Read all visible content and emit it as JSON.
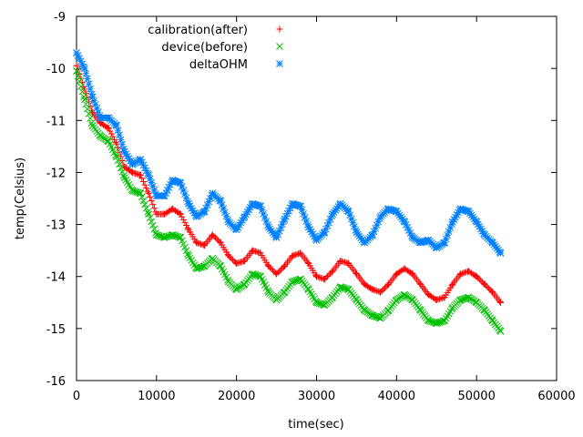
{
  "chart_data": {
    "type": "scatter",
    "title": "",
    "xlabel": "time(sec)",
    "ylabel": "temp(Celsius)",
    "xlim": [
      0,
      60000
    ],
    "ylim": [
      -16,
      -9
    ],
    "xticks": [
      0,
      10000,
      20000,
      30000,
      40000,
      50000,
      60000
    ],
    "yticks": [
      -16,
      -15,
      -14,
      -13,
      -12,
      -11,
      -10,
      -9
    ],
    "grid": false,
    "legend_position": "top-center",
    "series": [
      {
        "name": "calibration(after)",
        "marker": "plus",
        "color": "#ff0000",
        "points": [
          [
            0,
            -9.95
          ],
          [
            1000,
            -10.4
          ],
          [
            2000,
            -10.85
          ],
          [
            3000,
            -11.05
          ],
          [
            4000,
            -11.15
          ],
          [
            5000,
            -11.45
          ],
          [
            6000,
            -11.9
          ],
          [
            7000,
            -12.0
          ],
          [
            8000,
            -12.05
          ],
          [
            9000,
            -12.4
          ],
          [
            10000,
            -12.8
          ],
          [
            11000,
            -12.8
          ],
          [
            12000,
            -12.7
          ],
          [
            13000,
            -12.8
          ],
          [
            14000,
            -13.1
          ],
          [
            15000,
            -13.35
          ],
          [
            16000,
            -13.4
          ],
          [
            17000,
            -13.2
          ],
          [
            18000,
            -13.35
          ],
          [
            19000,
            -13.6
          ],
          [
            20000,
            -13.75
          ],
          [
            21000,
            -13.7
          ],
          [
            22000,
            -13.5
          ],
          [
            23000,
            -13.55
          ],
          [
            24000,
            -13.8
          ],
          [
            25000,
            -13.95
          ],
          [
            26000,
            -13.8
          ],
          [
            27000,
            -13.6
          ],
          [
            28000,
            -13.55
          ],
          [
            29000,
            -13.75
          ],
          [
            30000,
            -14.0
          ],
          [
            31000,
            -14.05
          ],
          [
            32000,
            -13.9
          ],
          [
            33000,
            -13.7
          ],
          [
            34000,
            -13.75
          ],
          [
            35000,
            -13.95
          ],
          [
            36000,
            -14.15
          ],
          [
            37000,
            -14.25
          ],
          [
            38000,
            -14.3
          ],
          [
            39000,
            -14.15
          ],
          [
            40000,
            -13.95
          ],
          [
            41000,
            -13.85
          ],
          [
            42000,
            -13.95
          ],
          [
            43000,
            -14.15
          ],
          [
            44000,
            -14.35
          ],
          [
            45000,
            -14.45
          ],
          [
            46000,
            -14.4
          ],
          [
            47000,
            -14.15
          ],
          [
            48000,
            -13.95
          ],
          [
            49000,
            -13.9
          ],
          [
            50000,
            -14.0
          ],
          [
            51000,
            -14.15
          ],
          [
            52000,
            -14.3
          ],
          [
            53000,
            -14.5
          ]
        ]
      },
      {
        "name": "device(before)",
        "marker": "cross",
        "color": "#00c000",
        "points": [
          [
            0,
            -10.05
          ],
          [
            1000,
            -10.6
          ],
          [
            2000,
            -11.1
          ],
          [
            3000,
            -11.3
          ],
          [
            4000,
            -11.4
          ],
          [
            5000,
            -11.7
          ],
          [
            6000,
            -12.1
          ],
          [
            7000,
            -12.35
          ],
          [
            8000,
            -12.4
          ],
          [
            9000,
            -12.8
          ],
          [
            10000,
            -13.2
          ],
          [
            11000,
            -13.25
          ],
          [
            12000,
            -13.2
          ],
          [
            13000,
            -13.25
          ],
          [
            14000,
            -13.6
          ],
          [
            15000,
            -13.85
          ],
          [
            16000,
            -13.8
          ],
          [
            17000,
            -13.65
          ],
          [
            18000,
            -13.8
          ],
          [
            19000,
            -14.1
          ],
          [
            20000,
            -14.25
          ],
          [
            21000,
            -14.15
          ],
          [
            22000,
            -13.95
          ],
          [
            23000,
            -14.0
          ],
          [
            24000,
            -14.3
          ],
          [
            25000,
            -14.45
          ],
          [
            26000,
            -14.3
          ],
          [
            27000,
            -14.1
          ],
          [
            28000,
            -14.05
          ],
          [
            29000,
            -14.25
          ],
          [
            30000,
            -14.5
          ],
          [
            31000,
            -14.55
          ],
          [
            32000,
            -14.4
          ],
          [
            33000,
            -14.2
          ],
          [
            34000,
            -14.25
          ],
          [
            35000,
            -14.45
          ],
          [
            36000,
            -14.65
          ],
          [
            37000,
            -14.75
          ],
          [
            38000,
            -14.8
          ],
          [
            39000,
            -14.65
          ],
          [
            40000,
            -14.45
          ],
          [
            41000,
            -14.35
          ],
          [
            42000,
            -14.45
          ],
          [
            43000,
            -14.65
          ],
          [
            44000,
            -14.85
          ],
          [
            45000,
            -14.9
          ],
          [
            46000,
            -14.85
          ],
          [
            47000,
            -14.6
          ],
          [
            48000,
            -14.45
          ],
          [
            49000,
            -14.4
          ],
          [
            50000,
            -14.5
          ],
          [
            51000,
            -14.65
          ],
          [
            52000,
            -14.85
          ],
          [
            53000,
            -15.05
          ]
        ]
      },
      {
        "name": "deltaOHM",
        "marker": "star",
        "color": "#0080ff",
        "points": [
          [
            0,
            -9.7
          ],
          [
            1000,
            -10.0
          ],
          [
            2000,
            -10.55
          ],
          [
            3000,
            -10.95
          ],
          [
            4000,
            -10.95
          ],
          [
            5000,
            -11.1
          ],
          [
            6000,
            -11.6
          ],
          [
            7000,
            -11.85
          ],
          [
            8000,
            -11.75
          ],
          [
            9000,
            -12.05
          ],
          [
            10000,
            -12.45
          ],
          [
            11000,
            -12.45
          ],
          [
            12000,
            -12.15
          ],
          [
            13000,
            -12.2
          ],
          [
            14000,
            -12.6
          ],
          [
            15000,
            -12.85
          ],
          [
            16000,
            -12.75
          ],
          [
            17000,
            -12.4
          ],
          [
            18000,
            -12.55
          ],
          [
            19000,
            -12.95
          ],
          [
            20000,
            -13.1
          ],
          [
            21000,
            -12.85
          ],
          [
            22000,
            -12.6
          ],
          [
            23000,
            -12.65
          ],
          [
            24000,
            -13.05
          ],
          [
            25000,
            -13.25
          ],
          [
            26000,
            -12.9
          ],
          [
            27000,
            -12.6
          ],
          [
            28000,
            -12.65
          ],
          [
            29000,
            -13.05
          ],
          [
            30000,
            -13.3
          ],
          [
            31000,
            -13.15
          ],
          [
            32000,
            -12.8
          ],
          [
            33000,
            -12.6
          ],
          [
            34000,
            -12.75
          ],
          [
            35000,
            -13.15
          ],
          [
            36000,
            -13.35
          ],
          [
            37000,
            -13.2
          ],
          [
            38000,
            -12.85
          ],
          [
            39000,
            -12.7
          ],
          [
            40000,
            -12.75
          ],
          [
            41000,
            -12.95
          ],
          [
            42000,
            -13.25
          ],
          [
            43000,
            -13.35
          ],
          [
            44000,
            -13.3
          ],
          [
            45000,
            -13.45
          ],
          [
            46000,
            -13.35
          ],
          [
            47000,
            -12.95
          ],
          [
            48000,
            -12.7
          ],
          [
            49000,
            -12.75
          ],
          [
            50000,
            -12.95
          ],
          [
            51000,
            -13.2
          ],
          [
            52000,
            -13.35
          ],
          [
            53000,
            -13.55
          ]
        ]
      }
    ]
  }
}
